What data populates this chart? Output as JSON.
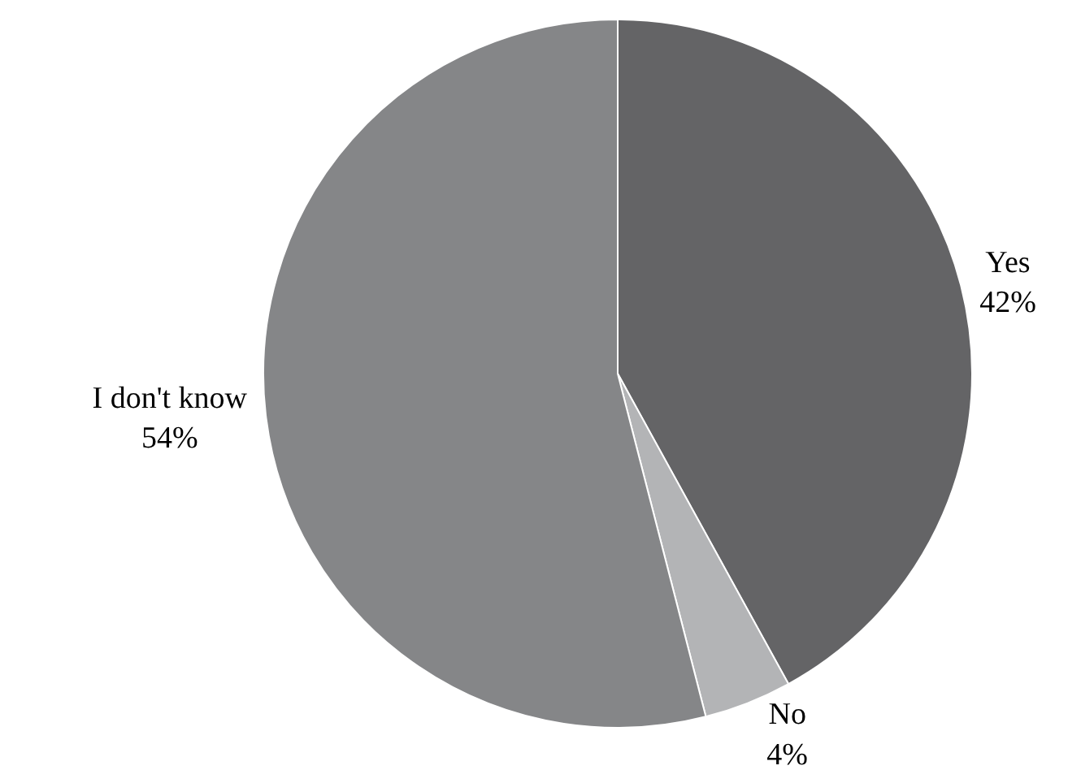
{
  "chart_data": {
    "type": "pie",
    "categories": [
      "Yes",
      "No",
      "I don't know"
    ],
    "values": [
      42,
      4,
      54
    ],
    "value_labels": [
      "42%",
      "4%",
      "54%"
    ],
    "colors": [
      "#646466",
      "#b3b4b6",
      "#858688"
    ],
    "legend": false
  }
}
